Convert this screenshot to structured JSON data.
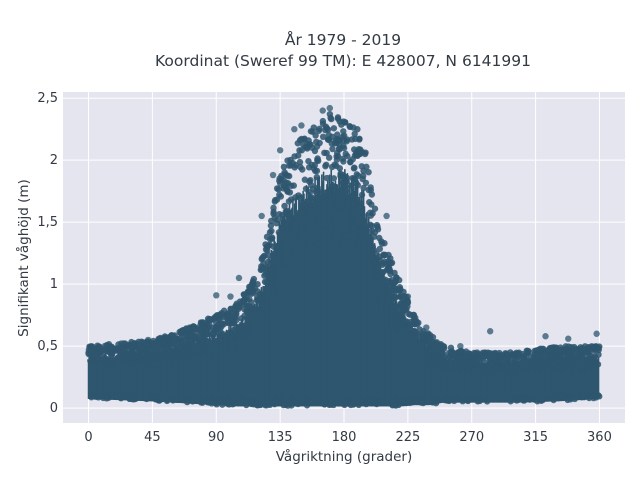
{
  "chart_data": {
    "type": "scatter",
    "title": "År 1979 - 2019",
    "subtitle": "Koordinat (Sweref 99 TM): E 428007, N 6141991",
    "xlabel": "Vågriktning (grader)",
    "ylabel": "Signifikant våghöjd (m)",
    "xlim": [
      -18,
      378
    ],
    "ylim": [
      -0.12,
      2.55
    ],
    "x_ticks": [
      0,
      45,
      90,
      135,
      180,
      225,
      270,
      315,
      360
    ],
    "x_tick_labels": [
      "0",
      "45",
      "90",
      "135",
      "180",
      "225",
      "270",
      "315",
      "360"
    ],
    "y_ticks": [
      0,
      0.5,
      1,
      1.5,
      2,
      2.5
    ],
    "y_tick_labels": [
      "0",
      "0,5",
      "1",
      "1,5",
      "2",
      "2,5"
    ],
    "grid": true,
    "legend": "none",
    "marker_color": "#2e566e",
    "background_color": "#e5e5ef",
    "envelope": {
      "x": [
        0,
        45,
        60,
        90,
        105,
        120,
        130,
        135,
        140,
        150,
        160,
        170,
        180,
        190,
        195,
        200,
        210,
        220,
        230,
        240,
        250,
        270,
        300,
        330,
        360
      ],
      "y_upper": [
        0.5,
        0.55,
        0.6,
        0.75,
        0.85,
        1.1,
        1.6,
        1.9,
        2.0,
        2.2,
        2.28,
        2.38,
        2.38,
        2.25,
        2.1,
        1.7,
        1.3,
        1.0,
        0.75,
        0.6,
        0.5,
        0.45,
        0.45,
        0.5,
        0.5
      ],
      "y_lower": [
        0.08,
        0.06,
        0.05,
        0.03,
        0.02,
        0.02,
        0.02,
        0.02,
        0.02,
        0.02,
        0.02,
        0.02,
        0.02,
        0.02,
        0.02,
        0.02,
        0.02,
        0.02,
        0.03,
        0.03,
        0.05,
        0.05,
        0.05,
        0.06,
        0.08
      ]
    },
    "outliers": [
      {
        "x": 2,
        "y": 0.5
      },
      {
        "x": 28,
        "y": 0.5
      },
      {
        "x": 42,
        "y": 0.55
      },
      {
        "x": 55,
        "y": 0.57
      },
      {
        "x": 70,
        "y": 0.6
      },
      {
        "x": 82,
        "y": 0.68
      },
      {
        "x": 90,
        "y": 0.91
      },
      {
        "x": 100,
        "y": 0.9
      },
      {
        "x": 106,
        "y": 1.05
      },
      {
        "x": 122,
        "y": 1.55
      },
      {
        "x": 130,
        "y": 1.88
      },
      {
        "x": 135,
        "y": 2.08
      },
      {
        "x": 145,
        "y": 2.25
      },
      {
        "x": 150,
        "y": 2.28
      },
      {
        "x": 165,
        "y": 2.4
      },
      {
        "x": 170,
        "y": 2.42
      },
      {
        "x": 210,
        "y": 1.55
      },
      {
        "x": 225,
        "y": 0.9
      },
      {
        "x": 238,
        "y": 0.65
      },
      {
        "x": 262,
        "y": 0.5
      },
      {
        "x": 283,
        "y": 0.62
      },
      {
        "x": 310,
        "y": 0.45
      },
      {
        "x": 322,
        "y": 0.58
      },
      {
        "x": 338,
        "y": 0.56
      },
      {
        "x": 358,
        "y": 0.6
      },
      {
        "x": 355,
        "y": 0.48
      },
      {
        "x": 348,
        "y": 0.3
      },
      {
        "x": 300,
        "y": 0.3
      }
    ]
  }
}
